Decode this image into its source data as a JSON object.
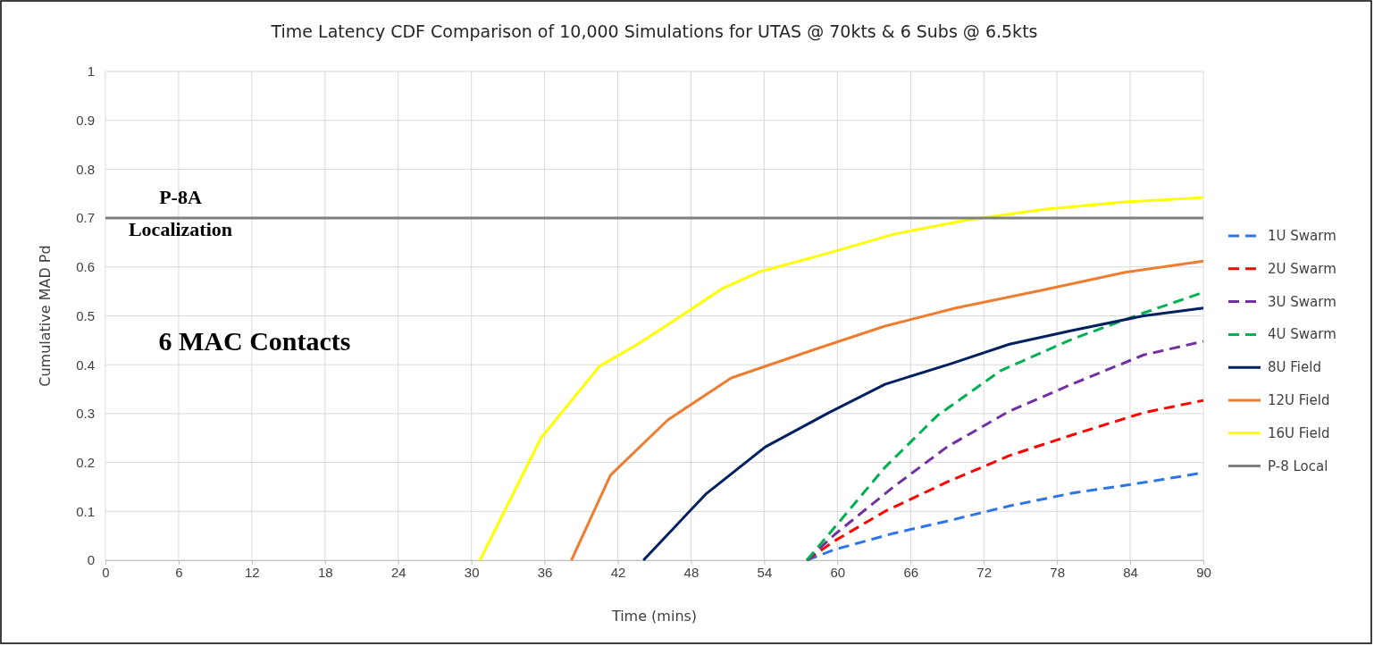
{
  "chart_data": {
    "type": "line",
    "title": "Time Latency CDF Comparison of 10,000 Simulations for UTAS @ 70kts & 6 Subs @ 6.5kts",
    "xlabel": "Time (mins)",
    "ylabel": "Cumulative MAD Pd",
    "xlim": [
      0,
      90
    ],
    "xticks": [
      0,
      6,
      12,
      18,
      24,
      30,
      36,
      42,
      48,
      54,
      60,
      66,
      72,
      78,
      84,
      90
    ],
    "ylim": [
      0,
      1
    ],
    "yticks": [
      0,
      0.1,
      0.2,
      0.3,
      0.4,
      0.5,
      0.6,
      0.7,
      0.8,
      0.9,
      1
    ],
    "grid": true,
    "legend": "right",
    "marker": "none",
    "annotations": [
      "P-8A\nLocalization",
      "6 MAC Contacts"
    ],
    "series": [
      {
        "name": "1U Swarm",
        "color": "#2e75e6",
        "line_style": "dashed",
        "x": [
          57.5,
          59.8,
          64.6,
          69,
          74.1,
          79.2,
          85.1,
          90
        ],
        "values": [
          0,
          0.022,
          0.055,
          0.08,
          0.111,
          0.137,
          0.159,
          0.179
        ]
      },
      {
        "name": "2U Swarm",
        "color": "#ff0000",
        "line_style": "dashed",
        "x": [
          57.5,
          59.8,
          63.9,
          69,
          74.1,
          79.2,
          85.1,
          90
        ],
        "values": [
          0,
          0.04,
          0.1,
          0.16,
          0.214,
          0.256,
          0.302,
          0.327
        ]
      },
      {
        "name": "3U Swarm",
        "color": "#7030a0",
        "line_style": "dashed",
        "x": [
          57.5,
          59.8,
          64.6,
          69,
          74.1,
          79.2,
          85.1,
          90
        ],
        "values": [
          0,
          0.053,
          0.15,
          0.232,
          0.305,
          0.36,
          0.42,
          0.448
        ]
      },
      {
        "name": "4U Swarm",
        "color": "#00b050",
        "line_style": "dashed",
        "x": [
          57.5,
          59.8,
          63.9,
          68.2,
          73.4,
          79.2,
          85.1,
          90
        ],
        "values": [
          0,
          0.068,
          0.19,
          0.296,
          0.388,
          0.452,
          0.506,
          0.548
        ]
      },
      {
        "name": "8U Field",
        "color": "#002060",
        "line_style": "solid",
        "x": [
          44.1,
          49.2,
          54.1,
          59.3,
          63.9,
          69.3,
          74.1,
          79.2,
          85.1,
          90
        ],
        "values": [
          0,
          0.135,
          0.232,
          0.302,
          0.36,
          0.402,
          0.442,
          0.47,
          0.5,
          0.516
        ]
      },
      {
        "name": "12U Field",
        "color": "#ed7d31",
        "line_style": "solid",
        "x": [
          38.2,
          41.4,
          46.1,
          51.3,
          58.1,
          63.9,
          69.7,
          76.7,
          83.6,
          90
        ],
        "values": [
          0,
          0.174,
          0.287,
          0.373,
          0.431,
          0.479,
          0.516,
          0.552,
          0.589,
          0.612
        ]
      },
      {
        "name": "16U Field",
        "color": "#ffff00",
        "line_style": "solid",
        "x": [
          30.7,
          35.7,
          40.5,
          43.5,
          46.6,
          50.5,
          53.6,
          59.5,
          64.6,
          70.4,
          77,
          83.6,
          90
        ],
        "values": [
          0,
          0.25,
          0.397,
          0.44,
          0.49,
          0.555,
          0.59,
          0.63,
          0.667,
          0.695,
          0.718,
          0.733,
          0.742
        ]
      },
      {
        "name": "P-8 Local",
        "color": "#808080",
        "line_style": "solid",
        "x": [
          0,
          90
        ],
        "values": [
          0.7,
          0.7
        ]
      }
    ]
  }
}
